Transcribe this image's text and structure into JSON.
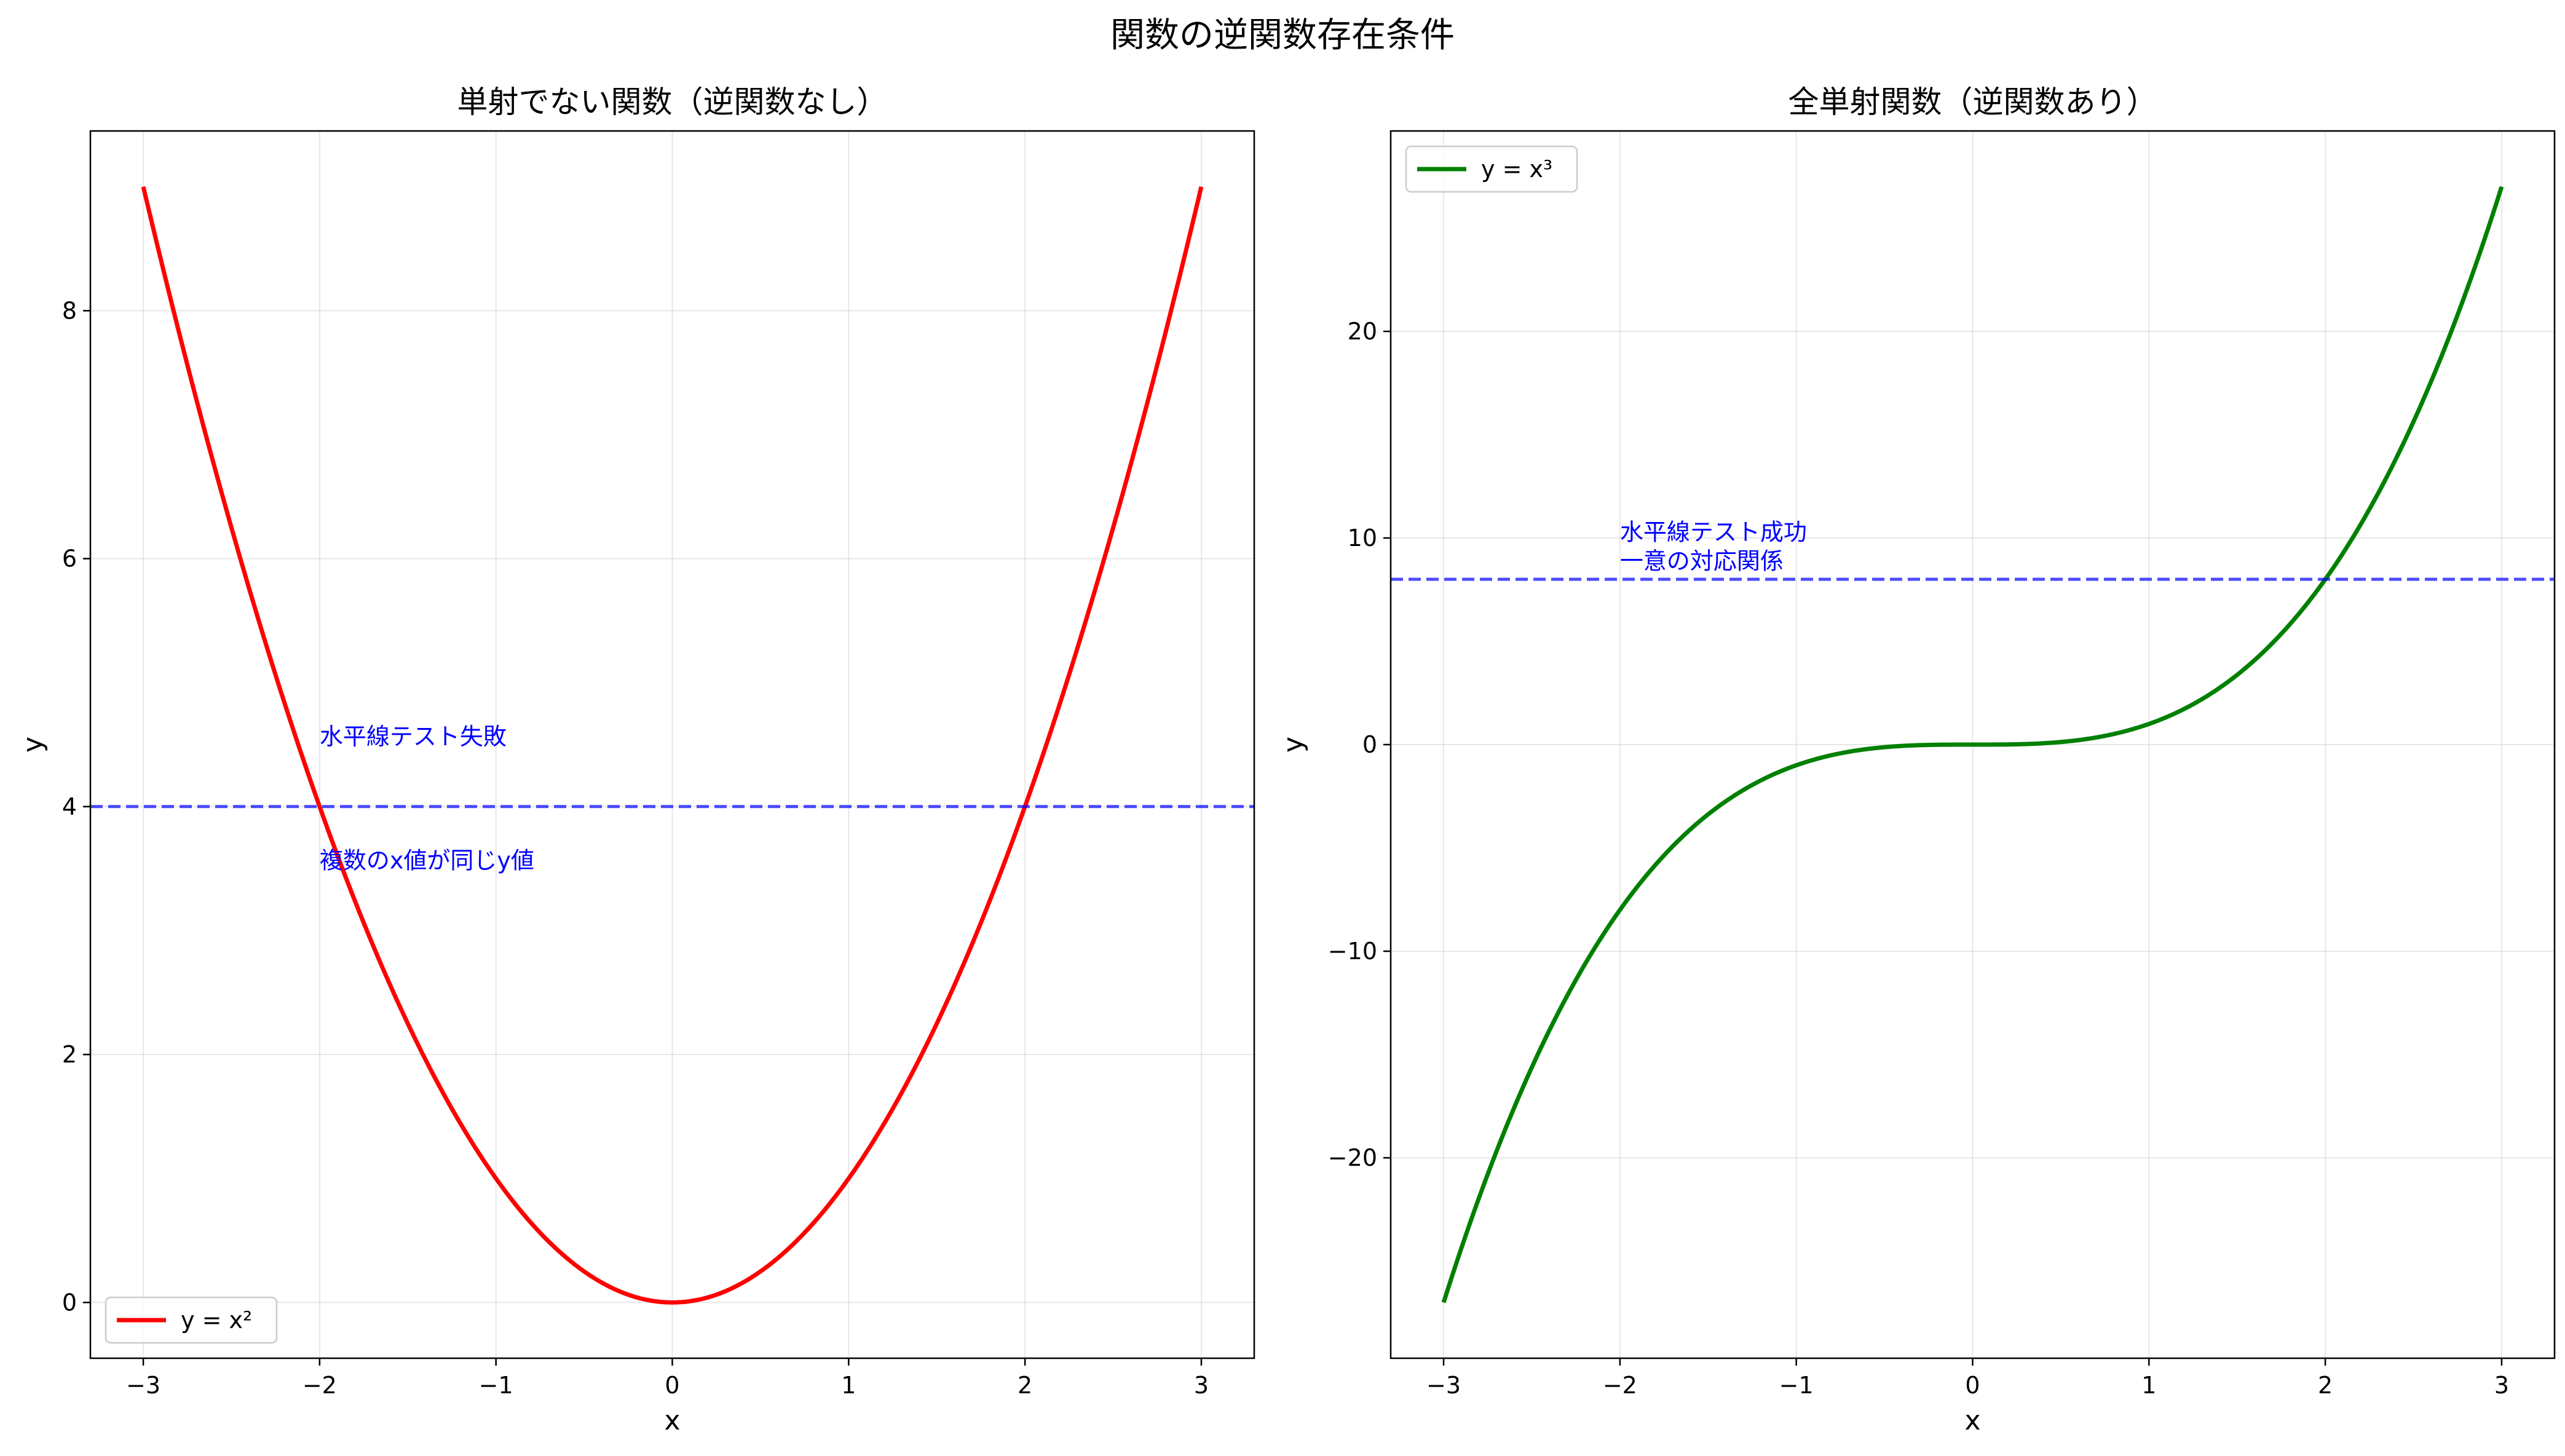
{
  "figure": {
    "suptitle": "関数の逆関数存在条件"
  },
  "chart_data": [
    {
      "type": "line",
      "title": "単射でない関数（逆関数なし）",
      "xlabel": "x",
      "ylabel": "y",
      "xlim": [
        -3.3,
        3.3
      ],
      "ylim": [
        -0.45,
        9.45
      ],
      "xticks": [
        -3,
        -2,
        -1,
        0,
        1,
        2,
        3
      ],
      "xtick_labels": [
        "−3",
        "−2",
        "−1",
        "0",
        "1",
        "2",
        "3"
      ],
      "yticks": [
        0,
        2,
        4,
        6,
        8
      ],
      "ytick_labels": [
        "0",
        "2",
        "4",
        "6",
        "8"
      ],
      "grid": true,
      "legend_position": "lower-left",
      "series": [
        {
          "name": "y = x²",
          "function": "x^2",
          "x_range": [
            -3,
            3
          ],
          "color": "#ff0000"
        }
      ],
      "hline": {
        "y": 4,
        "color": "#0000ff",
        "style": "dashed"
      },
      "annotations": [
        {
          "text": "水平線テスト失敗",
          "x": -2,
          "y": 4.5
        },
        {
          "text": "複数のx値が同じy値",
          "x": -2,
          "y": 3.5
        }
      ]
    },
    {
      "type": "line",
      "title": "全単射関数（逆関数あり）",
      "xlabel": "x",
      "ylabel": "y",
      "xlim": [
        -3.3,
        3.3
      ],
      "ylim": [
        -29.7,
        29.7
      ],
      "xticks": [
        -3,
        -2,
        -1,
        0,
        1,
        2,
        3
      ],
      "xtick_labels": [
        "−3",
        "−2",
        "−1",
        "0",
        "1",
        "2",
        "3"
      ],
      "yticks": [
        -20,
        -10,
        0,
        10,
        20
      ],
      "ytick_labels": [
        "−20",
        "−10",
        "0",
        "10",
        "20"
      ],
      "grid": true,
      "legend_position": "upper-left",
      "series": [
        {
          "name": "y = x³",
          "function": "x^3",
          "x_range": [
            -3,
            3
          ],
          "color": "#008000"
        }
      ],
      "hline": {
        "y": 8,
        "color": "#0000ff",
        "style": "dashed"
      },
      "annotations": [
        {
          "text": "水平線テスト成功\n一意の対応関係",
          "x": -2,
          "y": 8.5
        }
      ]
    }
  ]
}
